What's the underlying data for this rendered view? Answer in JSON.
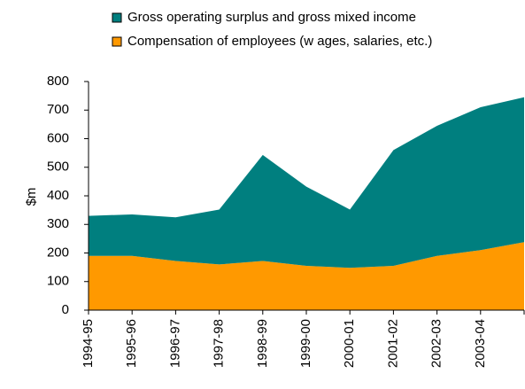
{
  "chart_data": {
    "type": "stacked_area",
    "y_label": "$m",
    "categories": [
      "1994-95",
      "1995-96",
      "1996-97",
      "1997-98",
      "1998-99",
      "1999-00",
      "2000-01",
      "2001-02",
      "2002-03",
      "2003-04",
      null
    ],
    "series": [
      {
        "name": "Compensation of employees (w ages, salaries, etc.)",
        "color": "#ff9900",
        "values": [
          190,
          190,
          172,
          160,
          172,
          155,
          148,
          155,
          190,
          210,
          238
        ]
      },
      {
        "name": "Gross operating surplus and gross mixed income",
        "color": "#007f7f",
        "values": [
          140,
          145,
          153,
          192,
          371,
          277,
          204,
          405,
          455,
          500,
          507
        ]
      }
    ],
    "ylim": [
      0,
      800
    ],
    "yticks": [
      0,
      100,
      200,
      300,
      400,
      500,
      600,
      700,
      800
    ],
    "grid": false,
    "legend": "top"
  }
}
